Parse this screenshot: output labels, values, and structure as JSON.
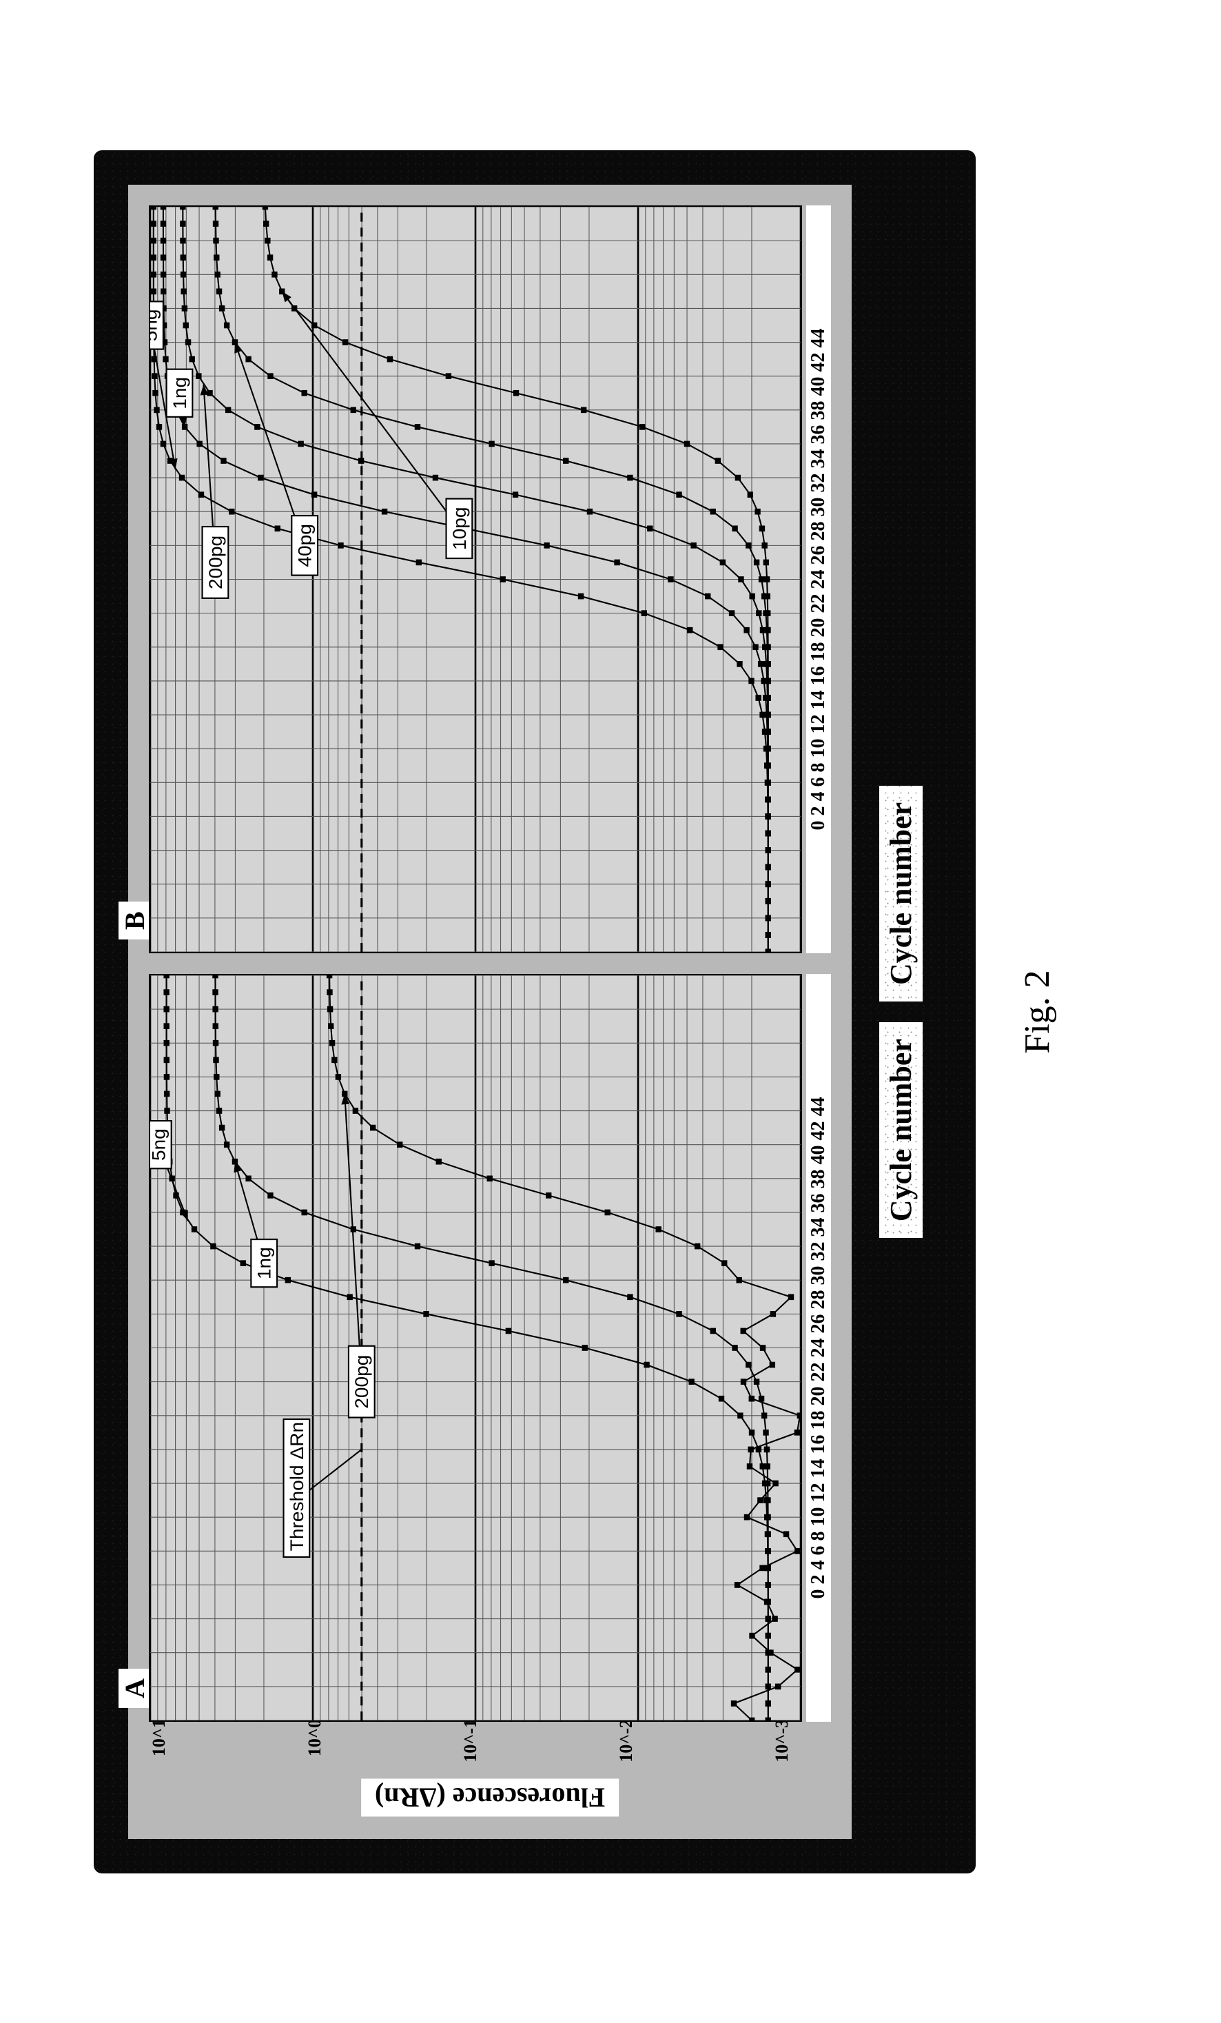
{
  "figure_caption": "Fig. 2",
  "yaxis_label": "Fluorescence (ΔRn)",
  "xaxis_label": "Cycle number",
  "ylog": {
    "min": -3,
    "max": 1,
    "ticks": [
      "10^1",
      "10^0",
      "10^-1",
      "10^-2",
      "10^-3"
    ]
  },
  "x": {
    "min": 0,
    "max": 44,
    "ticks": [
      0,
      2,
      4,
      6,
      8,
      10,
      12,
      14,
      16,
      18,
      20,
      22,
      24,
      26,
      28,
      30,
      32,
      34,
      36,
      38,
      40,
      42,
      44
    ]
  },
  "background_color": "#d4d4d4",
  "grid_major_color": "#000000",
  "grid_minor_color": "#555555",
  "series_color": "#000000",
  "marker_style": "square",
  "marker_size": 8,
  "line_width": 2,
  "threshold_log": -0.3,
  "panels": {
    "A": {
      "letter": "A",
      "xtick_string": "0  2  4  6  8 10 12 14 16 18 20 22 24 26 28 30 32 34 36 38 40 42 44",
      "threshold_label": "Threshold ΔRn",
      "series": [
        {
          "label": "5ng",
          "ct": 23.5,
          "plateau_log": 0.9,
          "label_xy": [
            34,
            0.95
          ]
        },
        {
          "label": "1ng",
          "ct": 27.0,
          "plateau_log": 0.6,
          "label_xy": [
            27,
            0.3
          ]
        },
        {
          "label": "200pg",
          "ct": 31.0,
          "plateau_log": -0.1,
          "noise": true,
          "label_xy": [
            20,
            -0.3
          ]
        }
      ]
    },
    "B": {
      "letter": "B",
      "xtick_string": "0  2  4  6  8 10 12 14 16 18 20 22 24 26 28 30 32 34 36 38 40 42 44",
      "series": [
        {
          "label": "5ng",
          "ct": 22.5,
          "plateau_log": 0.98,
          "label_xy": [
            37,
            1.0
          ]
        },
        {
          "label": "1ng",
          "ct": 25.0,
          "plateau_log": 0.92,
          "label_xy": [
            33,
            0.82
          ]
        },
        {
          "label": "200pg",
          "ct": 27.5,
          "plateau_log": 0.8,
          "label_xy": [
            23,
            0.6
          ]
        },
        {
          "label": "40pg",
          "ct": 30.0,
          "plateau_log": 0.6,
          "label_xy": [
            24,
            0.05
          ]
        },
        {
          "label": "10pg",
          "ct": 33.0,
          "plateau_log": 0.3,
          "label_xy": [
            25,
            -0.9
          ]
        }
      ]
    }
  }
}
